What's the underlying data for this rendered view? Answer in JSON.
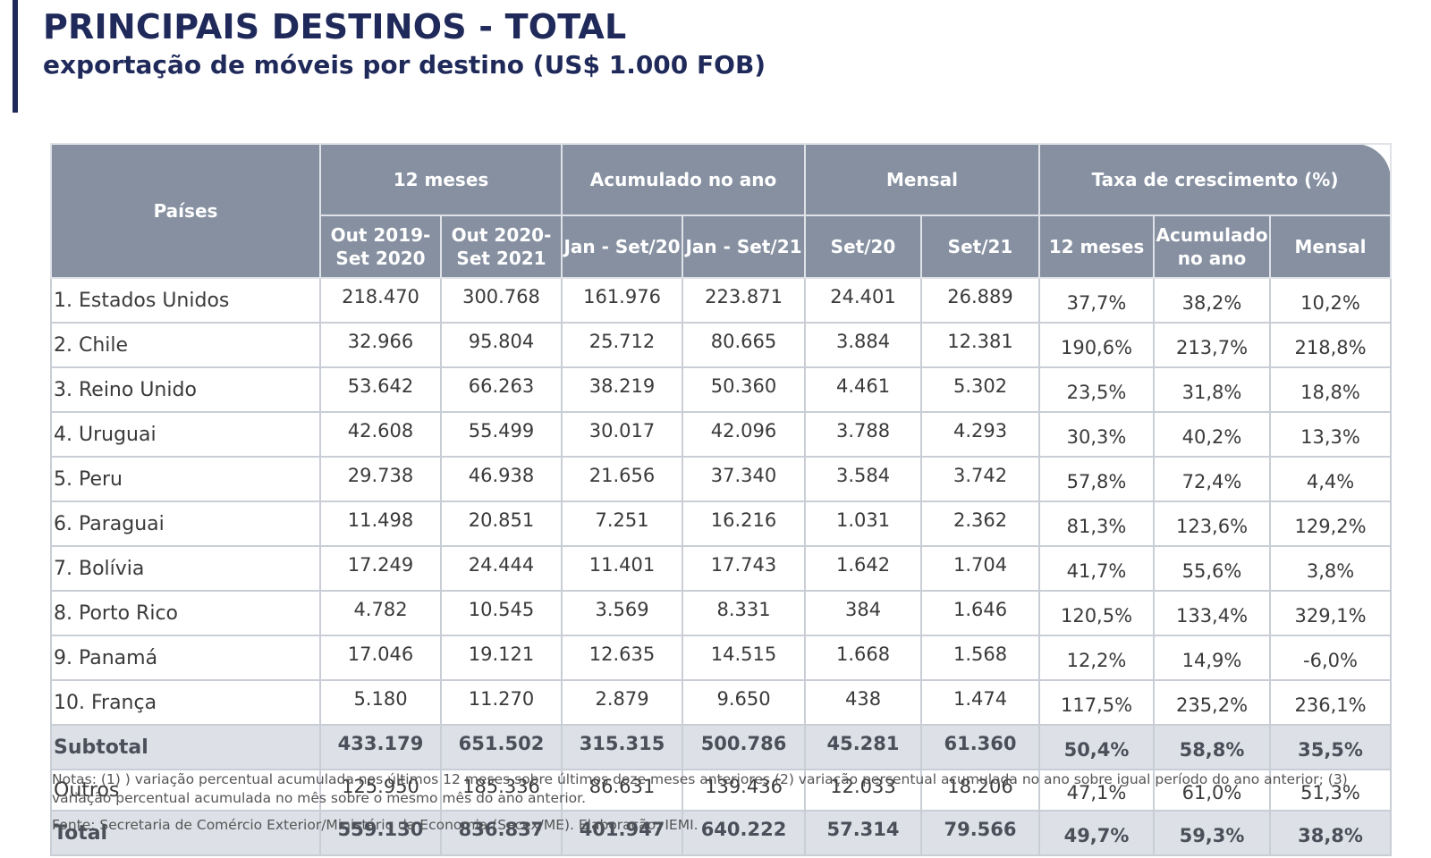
{
  "header": {
    "title": "PRINCIPAIS DESTINOS - TOTAL",
    "subtitle": "exportação de móveis por destino (US$ 1.000 FOB)"
  },
  "table": {
    "group_headers": {
      "countries": "Países",
      "twelve_months": "12 meses",
      "accumulated": "Acumulado no ano",
      "monthly": "Mensal",
      "growth": "Taxa de crescimento (%)"
    },
    "sub_headers": {
      "p1": "Out 2019-\nSet  2020",
      "p2": "Out 2020-\nSet 2021",
      "a1": "Jan - Set/20",
      "a2": "Jan - Set/21",
      "m1": "Set/20",
      "m2": "Set/21",
      "g1": "12 meses",
      "g2": "Acumulado\nno ano",
      "g3": "Mensal"
    },
    "rows": [
      [
        "1. Estados Unidos",
        "218.470",
        "300.768",
        "161.976",
        "223.871",
        "24.401",
        "26.889",
        "37,7%",
        "38,2%",
        "10,2%"
      ],
      [
        "2. Chile",
        "32.966",
        "95.804",
        "25.712",
        "80.665",
        "3.884",
        "12.381",
        "190,6%",
        "213,7%",
        "218,8%"
      ],
      [
        "3. Reino Unido",
        "53.642",
        "66.263",
        "38.219",
        "50.360",
        "4.461",
        "5.302",
        "23,5%",
        "31,8%",
        "18,8%"
      ],
      [
        "4. Uruguai",
        "42.608",
        "55.499",
        "30.017",
        "42.096",
        "3.788",
        "4.293",
        "30,3%",
        "40,2%",
        "13,3%"
      ],
      [
        "5. Peru",
        "29.738",
        "46.938",
        "21.656",
        "37.340",
        "3.584",
        "3.742",
        "57,8%",
        "72,4%",
        "4,4%"
      ],
      [
        "6. Paraguai",
        "11.498",
        "20.851",
        "7.251",
        "16.216",
        "1.031",
        "2.362",
        "81,3%",
        "123,6%",
        "129,2%"
      ],
      [
        "7. Bolívia",
        "17.249",
        "24.444",
        "11.401",
        "17.743",
        "1.642",
        "1.704",
        "41,7%",
        "55,6%",
        "3,8%"
      ],
      [
        "8. Porto Rico",
        "4.782",
        "10.545",
        "3.569",
        "8.331",
        "384",
        "1.646",
        "120,5%",
        "133,4%",
        "329,1%"
      ],
      [
        "9. Panamá",
        "17.046",
        "19.121",
        "12.635",
        "14.515",
        "1.668",
        "1.568",
        "12,2%",
        "14,9%",
        "-6,0%"
      ],
      [
        "10. França",
        "5.180",
        "11.270",
        "2.879",
        "9.650",
        "438",
        "1.474",
        "117,5%",
        "235,2%",
        "236,1%"
      ]
    ],
    "subtotal": [
      "Subtotal",
      "433.179",
      "651.502",
      "315.315",
      "500.786",
      "45.281",
      "61.360",
      "50,4%",
      "58,8%",
      "35,5%"
    ],
    "outros": [
      "Outros",
      "125.950",
      "185.336",
      "86.631",
      "139.436",
      "12.033",
      "18.206",
      "47,1%",
      "61,0%",
      "51,3%"
    ],
    "total": [
      "Total",
      "559.130",
      "836.837",
      "401.947",
      "640.222",
      "57.314",
      "79.566",
      "49,7%",
      "59,3%",
      "38,8%"
    ]
  },
  "footer": {
    "notes": "Notas: (1) ) variação percentual acumulada nos últimos 12 meses sobre últimos doze meses anteriores (2) variação percentual acumulada no ano sobre igual período do ano anterior; (3) variação percentual acumulada no mês sobre o mesmo mês do ano anterior.",
    "source": "Fonte: Secretaria de Comércio Exterior/Ministério da Economia (Secex/ME). Elaboração: IEMI."
  },
  "colors": {
    "title": "#1f2a5a",
    "header_bg": "#8690a1",
    "highlight_row_bg": "#dde1e7",
    "grid": "#c9ced6"
  }
}
